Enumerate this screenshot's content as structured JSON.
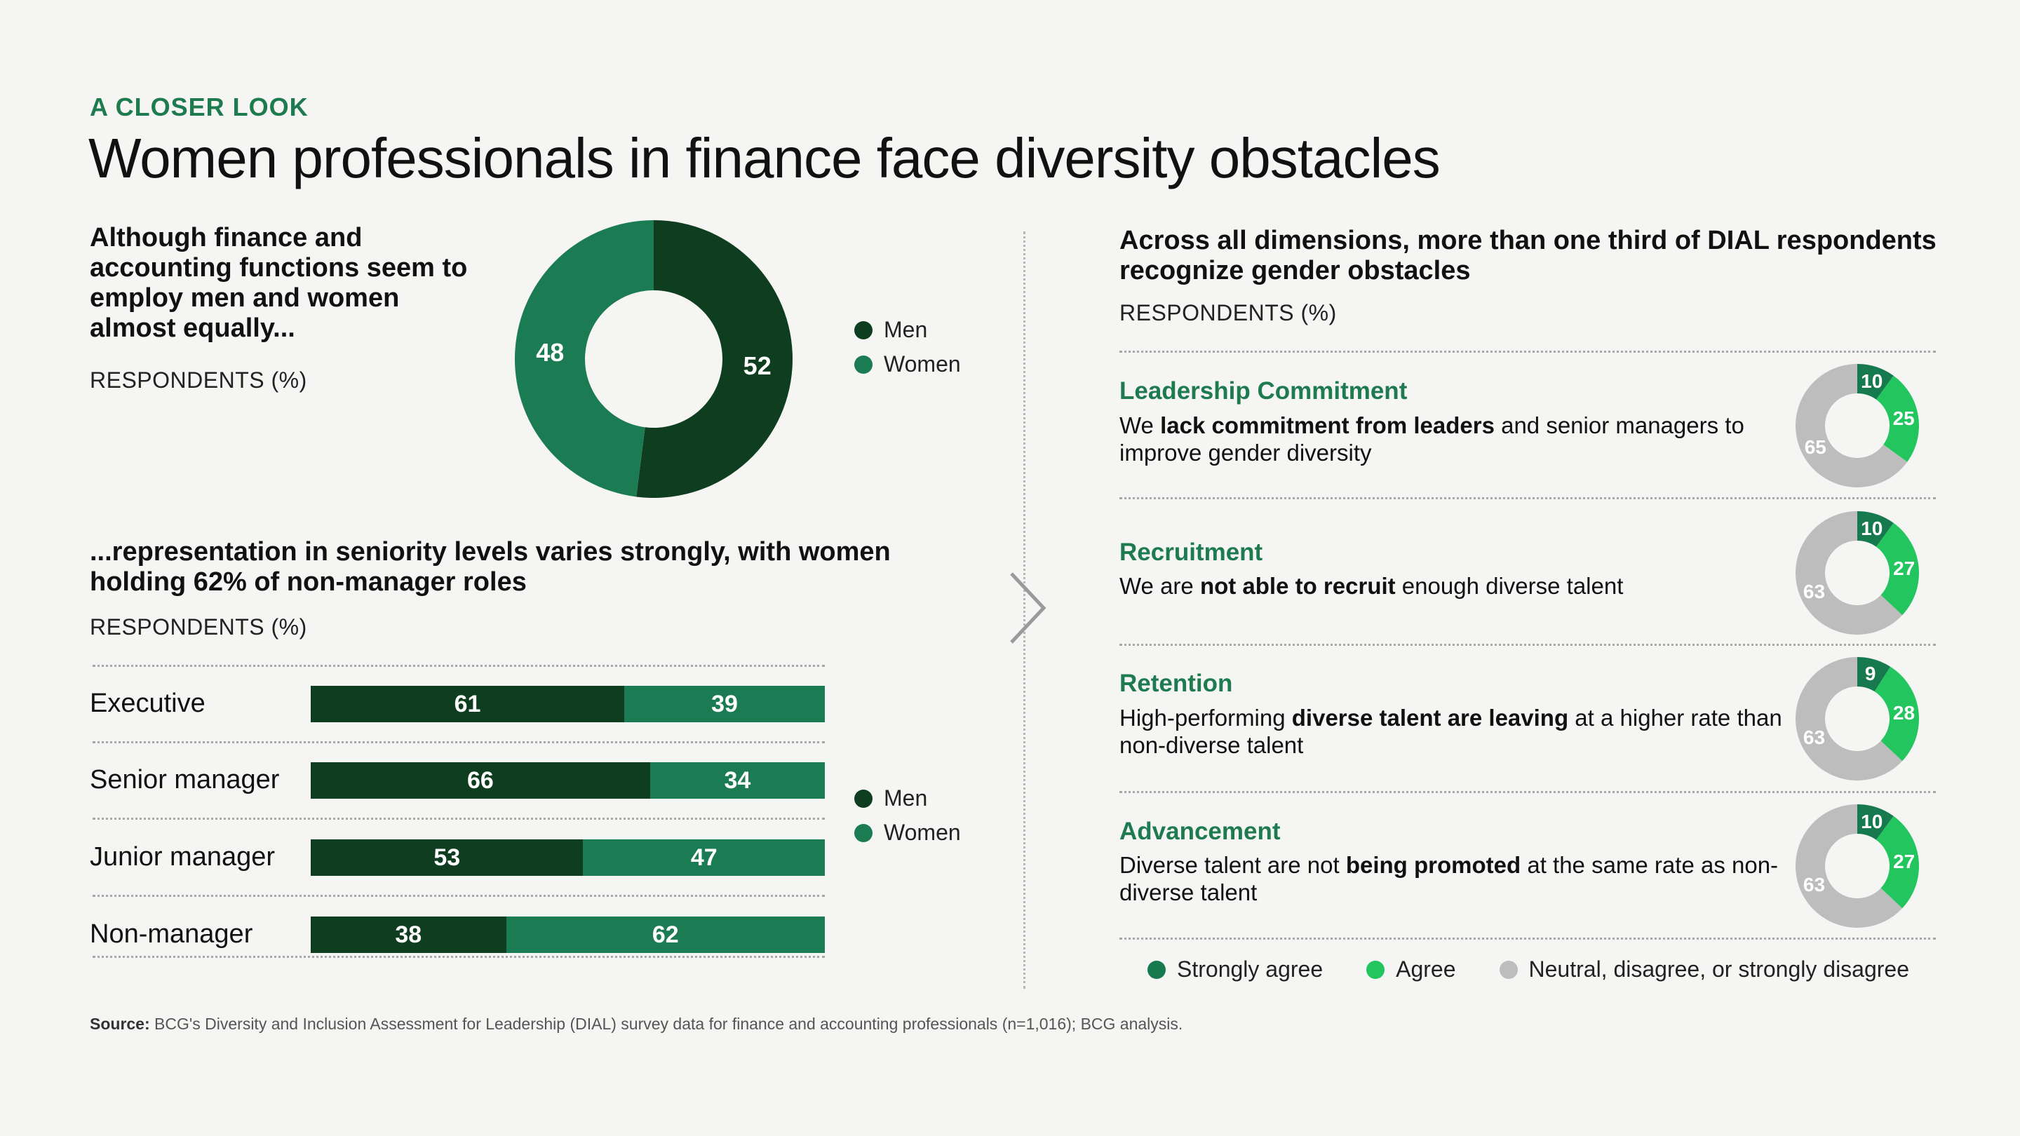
{
  "kicker": "A CLOSER LOOK",
  "title": "Women professionals in finance face diversity obstacles",
  "left_top": {
    "heading": "Although finance and accounting functions seem to employ men and women almost equally...",
    "sub": "RESPONDENTS (%)"
  },
  "left_bottom": {
    "heading": "...representation in seniority levels varies strongly, with women holding 62% of non-manager roles",
    "sub": "RESPONDENTS (%)"
  },
  "legend": {
    "men": "Men",
    "women": "Women"
  },
  "right": {
    "heading": "Across all dimensions, more than one third of DIAL respondents recognize gender obstacles",
    "sub": "RESPONDENTS (%)",
    "questions": [
      {
        "title": "Leadership Commitment",
        "t1": "We ",
        "b1": "lack commitment from leaders",
        "t2": " and senior managers to improve gender diversity"
      },
      {
        "title": "Recruitment",
        "t1": "We are ",
        "b1": "not able to recruit",
        "t2": " enough diverse talent"
      },
      {
        "title": "Retention",
        "t1": "High-performing ",
        "b1": "diverse talent are leaving",
        "t2": " at a higher rate than non-diverse talent"
      },
      {
        "title": "Advancement",
        "t1": "Diverse talent are not ",
        "b1": "being promoted",
        "t2": " at the same rate as non-diverse talent"
      }
    ],
    "legend": {
      "strong": "Strongly agree",
      "agree": "Agree",
      "neutral": "Neutral, disagree, or strongly disagree"
    }
  },
  "source": {
    "label": "Source:",
    "text": "BCG's Diversity and Inclusion Assessment for Leadership (DIAL) survey data for finance and accounting professionals (n=1,016); BCG analysis."
  },
  "colors": {
    "men": "#0e3d1f",
    "women": "#1b7c54",
    "strongly_agree": "#177a4f",
    "agree": "#22c55e",
    "neutral": "#bdbdbd",
    "accent": "#1e7a4f"
  },
  "chart_data": [
    {
      "type": "pie",
      "categories": [
        "Men",
        "Women"
      ],
      "values": [
        52,
        48
      ]
    },
    {
      "type": "bar",
      "orientation": "horizontal",
      "stacked": true,
      "categories": [
        "Executive",
        "Senior manager",
        "Junior manager",
        "Non-manager"
      ],
      "series": [
        {
          "name": "Men",
          "values": [
            61,
            66,
            53,
            38
          ]
        },
        {
          "name": "Women",
          "values": [
            39,
            34,
            47,
            62
          ]
        }
      ]
    },
    {
      "type": "pie",
      "categories": [
        "Strongly agree",
        "Agree",
        "Neutral, disagree, or strongly disagree"
      ],
      "values": [
        10,
        25,
        65
      ]
    },
    {
      "type": "pie",
      "categories": [
        "Strongly agree",
        "Agree",
        "Neutral, disagree, or strongly disagree"
      ],
      "values": [
        10,
        27,
        63
      ]
    },
    {
      "type": "pie",
      "categories": [
        "Strongly agree",
        "Agree",
        "Neutral, disagree, or strongly disagree"
      ],
      "values": [
        9,
        28,
        63
      ]
    },
    {
      "type": "pie",
      "categories": [
        "Strongly agree",
        "Agree",
        "Neutral, disagree, or strongly disagree"
      ],
      "values": [
        10,
        27,
        63
      ]
    }
  ]
}
